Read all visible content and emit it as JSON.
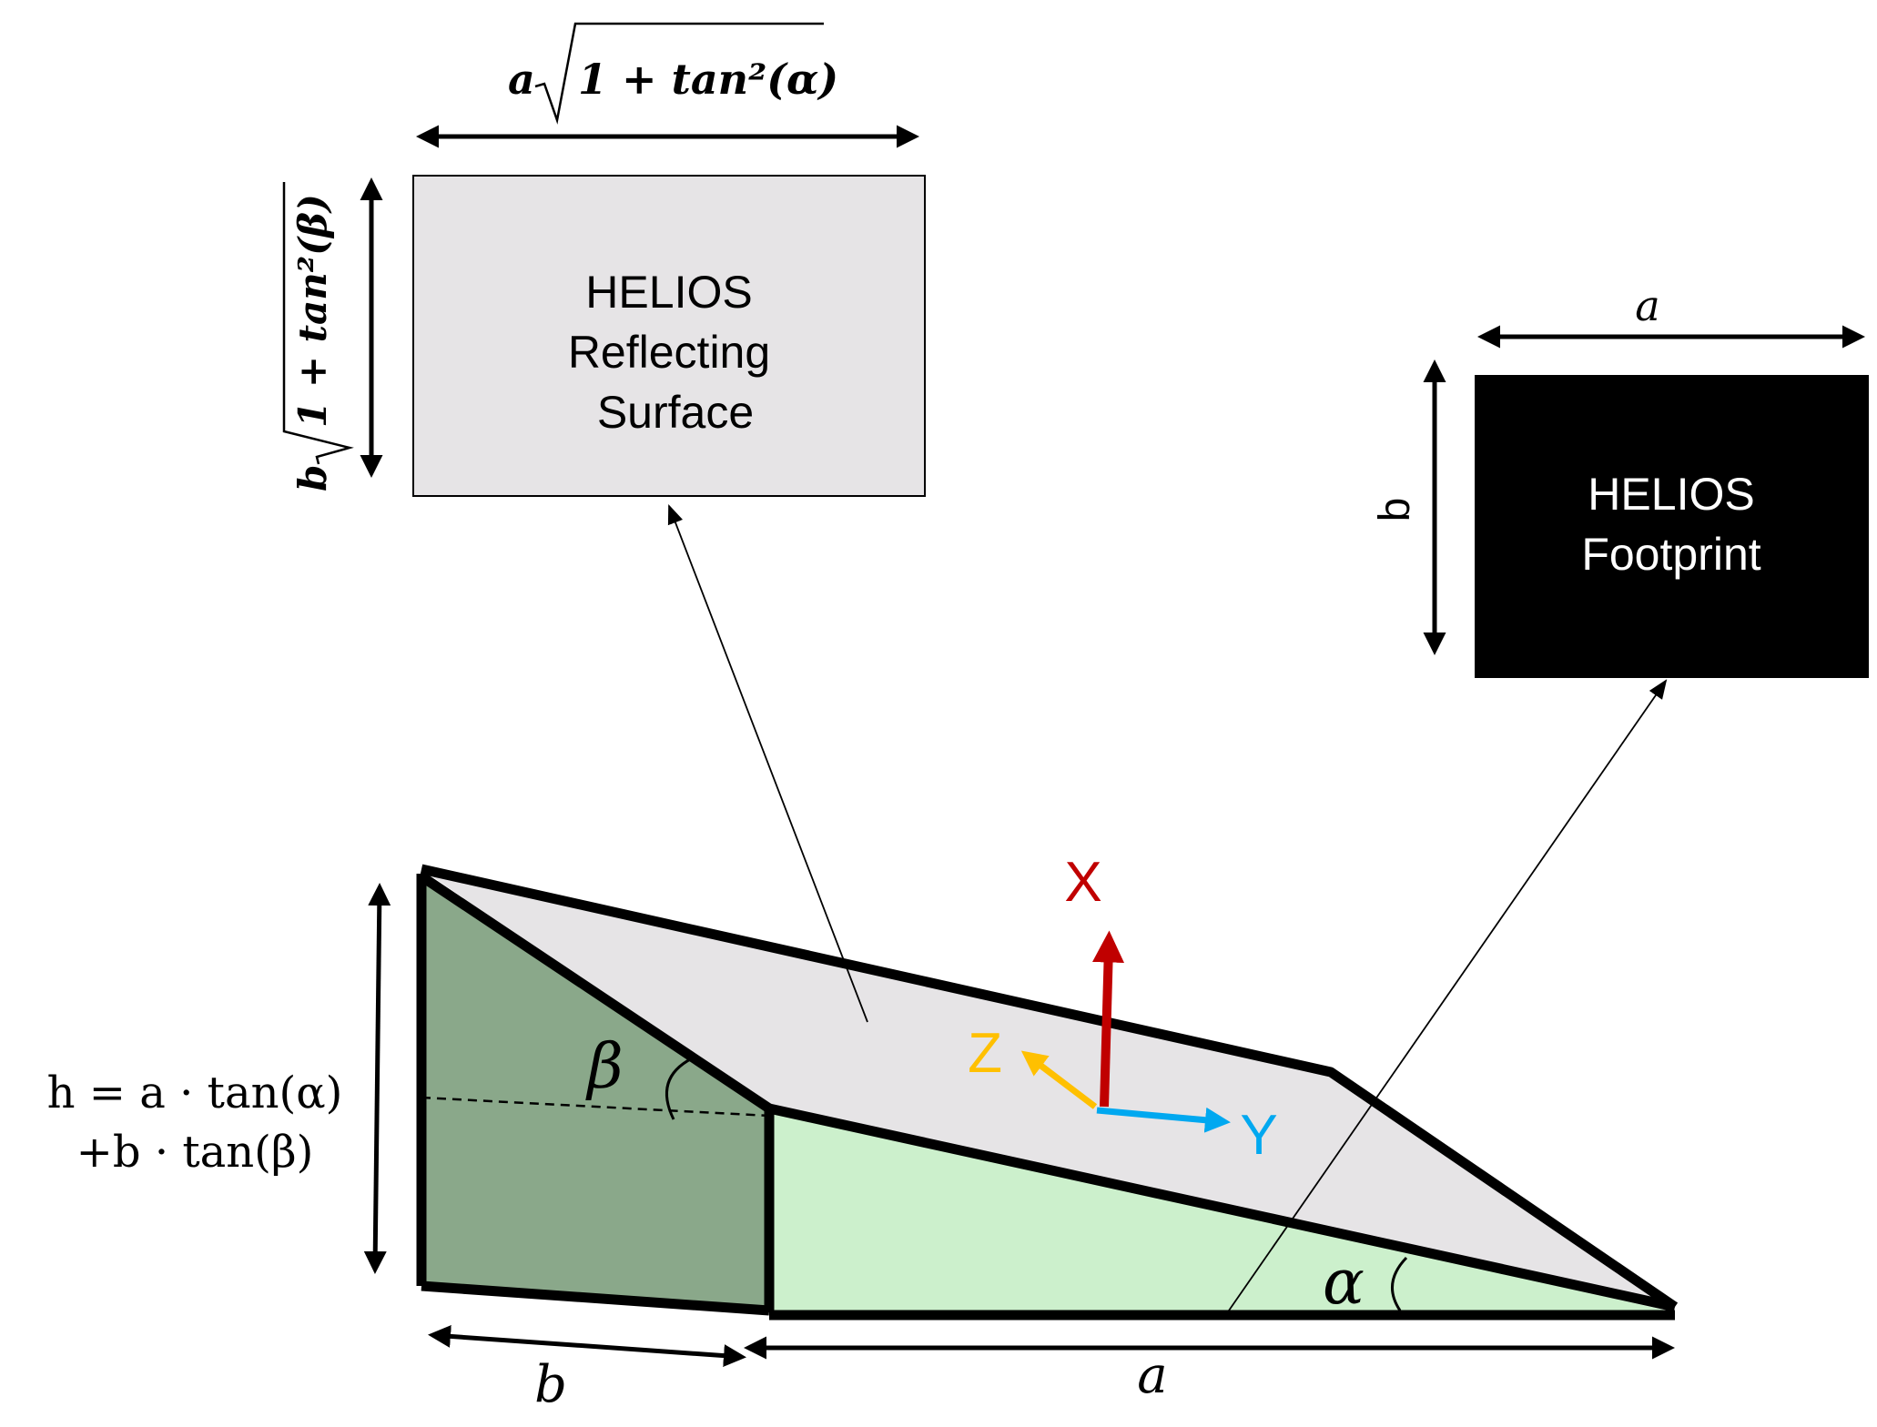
{
  "reflecting_surface": {
    "line1": "HELIOS",
    "line2": "Reflecting",
    "line3": "Surface",
    "width_label_a": "a",
    "width_label_sqrt": "1 + tan²(α)",
    "height_label_b": "b",
    "height_label_sqrt": "1 + tan²(β)"
  },
  "footprint": {
    "line1": "HELIOS",
    "line2": "Footprint",
    "width_label": "a",
    "height_label": "b"
  },
  "prism": {
    "height_line1": "h = a · tan(α)",
    "height_line2": "+b · tan(β)",
    "bottom_left_label": "b",
    "bottom_right_label": "a",
    "angle_alpha": "α",
    "angle_beta": "β"
  },
  "axes": {
    "x_label": "X",
    "y_label": "Y",
    "z_label": "Z"
  },
  "colors": {
    "dark_green": "#8aa88a",
    "light_green": "#ccf0cc",
    "surface_grey": "#e6e4e6",
    "x_axis": "#c00000",
    "y_axis": "#00a8f0",
    "z_axis": "#ffc000"
  }
}
